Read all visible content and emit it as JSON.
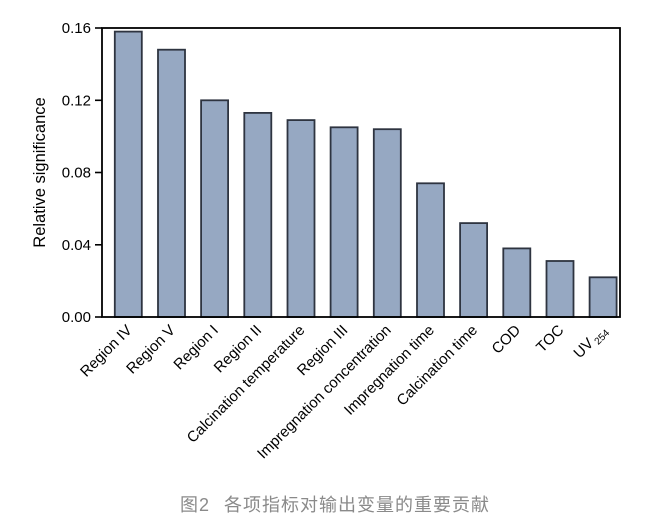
{
  "figure": {
    "caption_prefix": "图2",
    "caption_text": "各项指标对输出变量的重要贡献"
  },
  "chart_data": {
    "type": "bar",
    "title": "",
    "xlabel": "",
    "ylabel": "Relative significance",
    "ylim": [
      0,
      0.16
    ],
    "ytick_values": [
      0,
      0.04,
      0.08,
      0.12,
      0.16
    ],
    "ytick_labels": [
      "0.00",
      "0.04",
      "0.08",
      "0.12",
      "0.16"
    ],
    "grid": false,
    "legend": "none",
    "bar_fill_color": "#96A8C2",
    "bar_edge_color": "#2E3440",
    "axis_color": "#000000",
    "tick_label_color": "#000000",
    "categories": [
      {
        "label": "Region IV"
      },
      {
        "label": "Region V"
      },
      {
        "label": "Region I"
      },
      {
        "label": "Region II"
      },
      {
        "label": "Calcination temperature"
      },
      {
        "label": "Region III"
      },
      {
        "label": "Impregnation concentration"
      },
      {
        "label": "Impregnation time"
      },
      {
        "label": "Calcination time"
      },
      {
        "label": "COD"
      },
      {
        "label": "TOC"
      },
      {
        "label": "UV",
        "subscript": "254"
      }
    ],
    "values": [
      0.158,
      0.148,
      0.12,
      0.113,
      0.109,
      0.105,
      0.104,
      0.074,
      0.052,
      0.038,
      0.031,
      0.022
    ]
  }
}
